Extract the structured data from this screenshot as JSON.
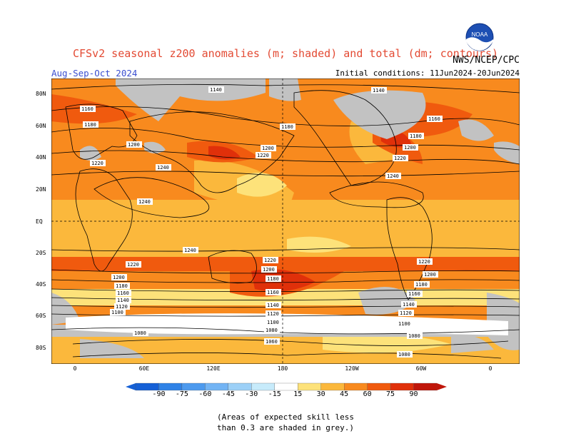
{
  "title": "CFSv2 seasonal z200 anomalies (m; shaded) and total (dm; contours)",
  "season": "Aug-Sep-Oct 2024",
  "agency": "NWS/NCEP/CPC",
  "initial_conditions": "Initial conditions: 11Jun2024-20Jun2024",
  "logo_text": "NOAA",
  "lat_labels": [
    "80N",
    "60N",
    "40N",
    "20N",
    "EQ",
    "20S",
    "40S",
    "60S",
    "80S"
  ],
  "lon_labels": [
    "0",
    "60E",
    "120E",
    "180",
    "120W",
    "60W",
    "0"
  ],
  "contour_labels": [
    "1140",
    "1160",
    "1180",
    "1200",
    "1220",
    "1240",
    "1100",
    "1120",
    "1080",
    "1060"
  ],
  "colorbar": {
    "labels": [
      "-90",
      "-75",
      "-60",
      "-45",
      "-30",
      "-15",
      "15",
      "30",
      "45",
      "60",
      "75",
      "90"
    ],
    "colors": [
      "#1560d6",
      "#2f82e6",
      "#4d9aee",
      "#73b4f4",
      "#9cd0f7",
      "#c7ebfb",
      "#ffffff",
      "#fde27a",
      "#fbb83c",
      "#f88a1e",
      "#f05a0e",
      "#e0300a",
      "#c0160a"
    ]
  },
  "note_line1": "(Areas of expected skill less",
  "note_line2": "than 0.3 are shaded in grey.)",
  "palette": {
    "grey": "#c2c2c2",
    "light_yellow": "#fde27a",
    "yellow_orange": "#fbb83c",
    "orange": "#f88a1e",
    "red_orange": "#f05a0e",
    "red": "#e0300a",
    "title_red": "#e34a33",
    "season_blue": "#3b4fd0"
  }
}
